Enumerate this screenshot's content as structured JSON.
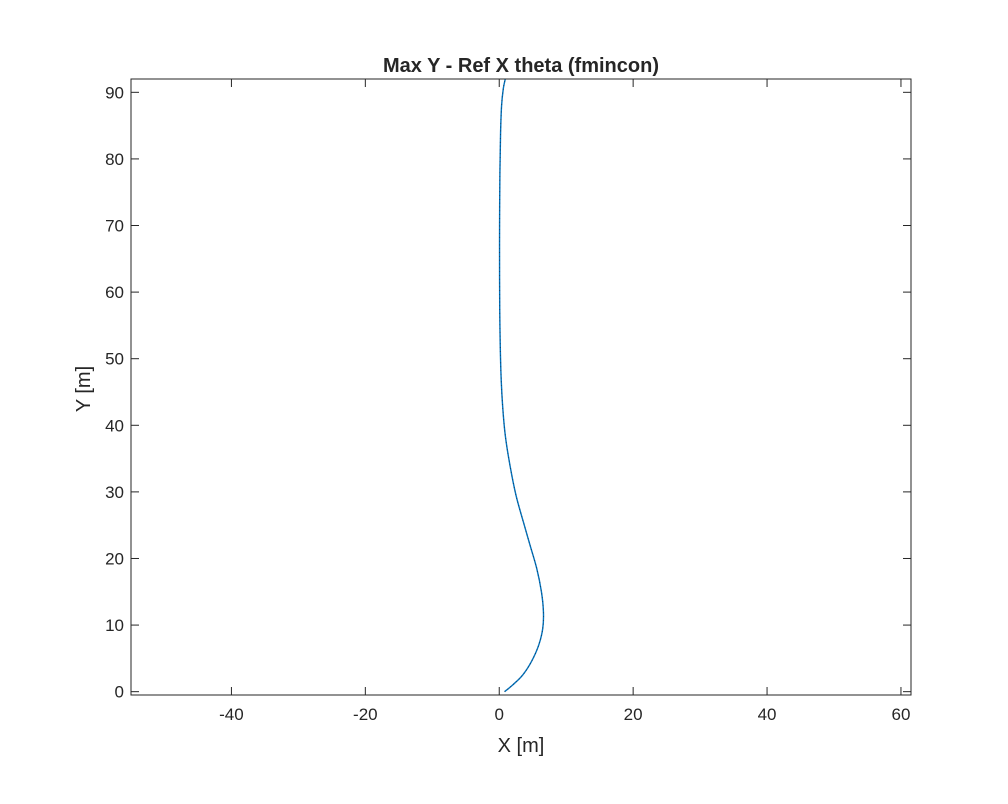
{
  "chart_data": {
    "type": "line",
    "title": "Max Y - Ref X theta (fmincon)",
    "xlabel": "X [m]",
    "ylabel": "Y [m]",
    "xlim": [
      -55,
      61.5
    ],
    "ylim": [
      -0.5,
      92
    ],
    "xticks": [
      -40,
      -20,
      0,
      20,
      40,
      60
    ],
    "yticks": [
      0,
      10,
      20,
      30,
      40,
      50,
      60,
      70,
      80,
      90
    ],
    "xtick_labels": [
      "-40",
      "-20",
      "0",
      "20",
      "40",
      "60"
    ],
    "ytick_labels": [
      "0",
      "10",
      "20",
      "30",
      "40",
      "50",
      "60",
      "70",
      "80",
      "90"
    ],
    "grid": false,
    "legend": "none",
    "line_color": "#0072bd",
    "series": [
      {
        "x": [
          0.8,
          2.0,
          3.5,
          4.8,
          5.9,
          6.5,
          6.6,
          6.3,
          5.6,
          4.6,
          3.6,
          2.5,
          1.6,
          0.9,
          0.5,
          0.25,
          0.1,
          0.05,
          0.05,
          0.1,
          0.2,
          0.35,
          0.6,
          0.9
        ],
        "y": [
          0,
          1,
          2.5,
          4.5,
          7,
          9.5,
          12,
          15,
          18.5,
          22,
          25.5,
          29.5,
          34,
          38.5,
          43,
          48,
          55,
          62,
          70,
          78,
          84,
          88,
          90.5,
          92
        ]
      }
    ]
  }
}
